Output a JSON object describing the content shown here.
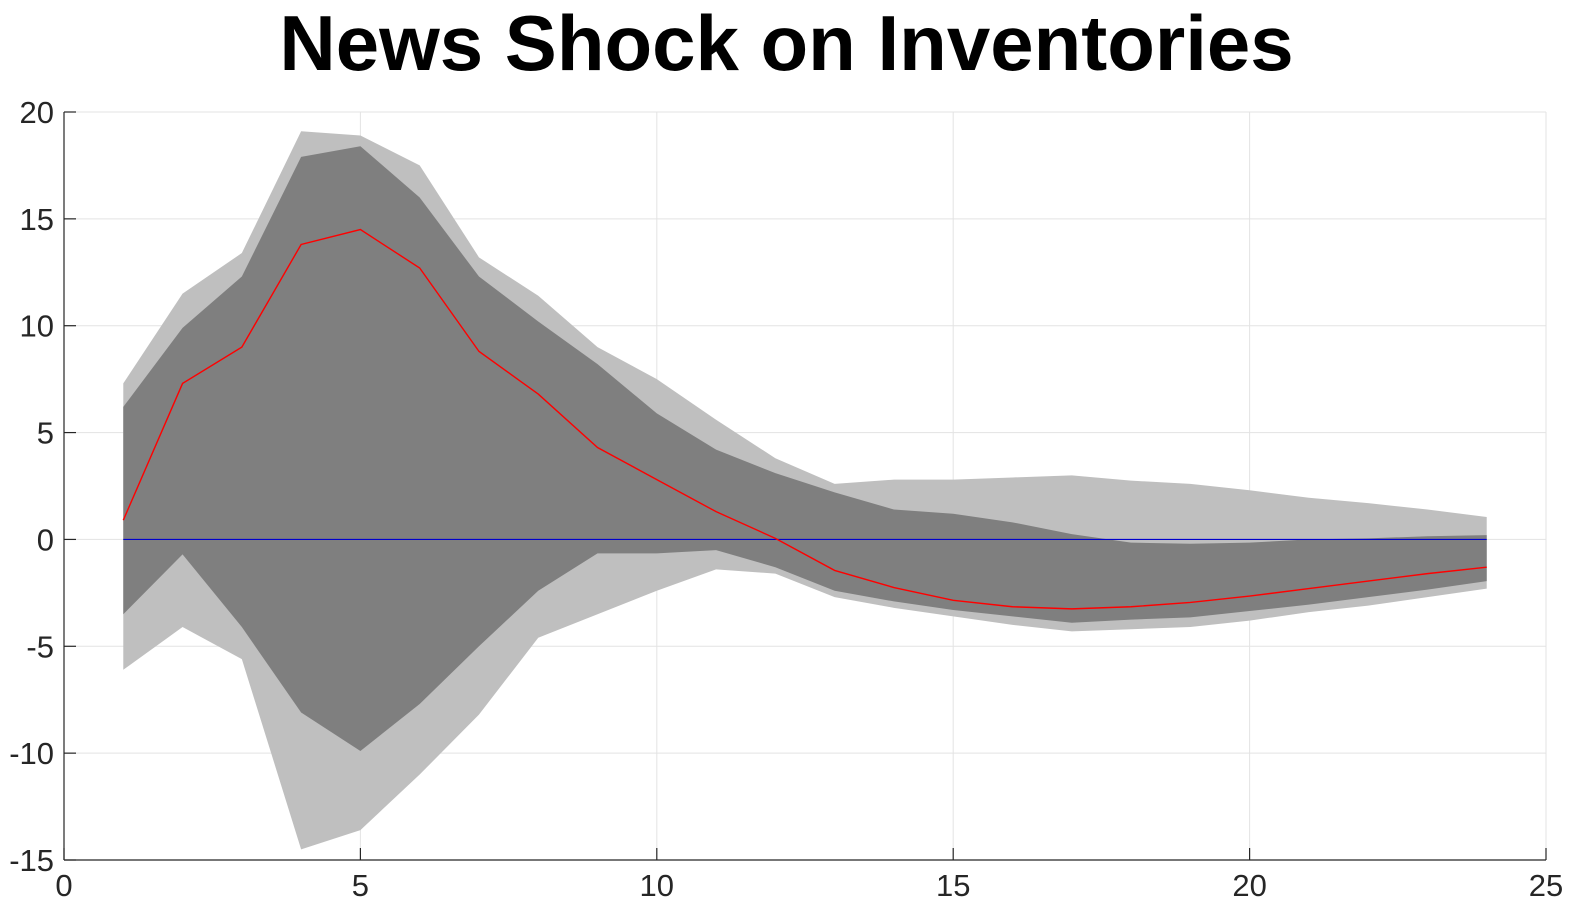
{
  "chart_data": {
    "type": "area",
    "title": "News Shock on Inventories",
    "xlabel": "",
    "ylabel": "",
    "xlim": [
      0,
      25
    ],
    "ylim": [
      -15,
      20
    ],
    "xticks": [
      0,
      5,
      10,
      15,
      20,
      25
    ],
    "yticks": [
      -15,
      -10,
      -5,
      0,
      5,
      10,
      15,
      20
    ],
    "xtick_labels": [
      "0",
      "5",
      "10",
      "15",
      "20",
      "25"
    ],
    "ytick_labels": [
      "-15",
      "-10",
      "-5",
      "0",
      "5",
      "10",
      "15",
      "20"
    ],
    "grid": true,
    "x": [
      1,
      2,
      3,
      4,
      5,
      6,
      7,
      8,
      9,
      10,
      11,
      12,
      13,
      14,
      15,
      16,
      17,
      18,
      19,
      20,
      21,
      22,
      23,
      24
    ],
    "series": [
      {
        "role": "outer-band-upper",
        "color": "#bfbfbf",
        "values": [
          7.3,
          11.5,
          13.4,
          19.1,
          18.9,
          17.5,
          13.2,
          11.4,
          9.0,
          7.5,
          5.6,
          3.8,
          2.6,
          2.8,
          2.8,
          2.9,
          3.0,
          2.75,
          2.6,
          2.3,
          1.95,
          1.7,
          1.4,
          1.05
        ]
      },
      {
        "role": "outer-band-lower",
        "color": "#bfbfbf",
        "values": [
          -6.1,
          -4.1,
          -5.6,
          -14.5,
          -13.6,
          -11.0,
          -8.2,
          -4.6,
          -3.5,
          -2.4,
          -1.4,
          -1.6,
          -2.7,
          -3.2,
          -3.6,
          -4.0,
          -4.3,
          -4.2,
          -4.1,
          -3.8,
          -3.4,
          -3.1,
          -2.7,
          -2.3
        ]
      },
      {
        "role": "inner-band-upper",
        "color": "#7f7f7f",
        "values": [
          6.2,
          9.9,
          12.3,
          17.9,
          18.4,
          16.0,
          12.3,
          10.2,
          8.2,
          5.9,
          4.2,
          3.1,
          2.2,
          1.4,
          1.2,
          0.8,
          0.25,
          -0.15,
          -0.2,
          -0.15,
          0.0,
          0.05,
          0.15,
          0.2
        ]
      },
      {
        "role": "inner-band-lower",
        "color": "#7f7f7f",
        "values": [
          -3.5,
          -0.7,
          -4.1,
          -8.1,
          -9.9,
          -7.7,
          -5.0,
          -2.4,
          -0.65,
          -0.65,
          -0.5,
          -1.3,
          -2.4,
          -2.9,
          -3.3,
          -3.6,
          -3.9,
          -3.75,
          -3.65,
          -3.35,
          -3.05,
          -2.7,
          -2.35,
          -1.95
        ]
      },
      {
        "role": "median-response",
        "color": "#ff0000",
        "values": [
          0.9,
          7.3,
          9.0,
          13.8,
          14.5,
          12.7,
          8.8,
          6.8,
          4.3,
          2.8,
          1.3,
          0.05,
          -1.45,
          -2.25,
          -2.85,
          -3.15,
          -3.25,
          -3.15,
          -2.95,
          -2.65,
          -2.3,
          -1.95,
          -1.6,
          -1.3
        ]
      },
      {
        "role": "zero-line",
        "color": "#0000cc",
        "values": [
          0,
          0,
          0,
          0,
          0,
          0,
          0,
          0,
          0,
          0,
          0,
          0,
          0,
          0,
          0,
          0,
          0,
          0,
          0,
          0,
          0,
          0,
          0,
          0
        ]
      }
    ]
  }
}
